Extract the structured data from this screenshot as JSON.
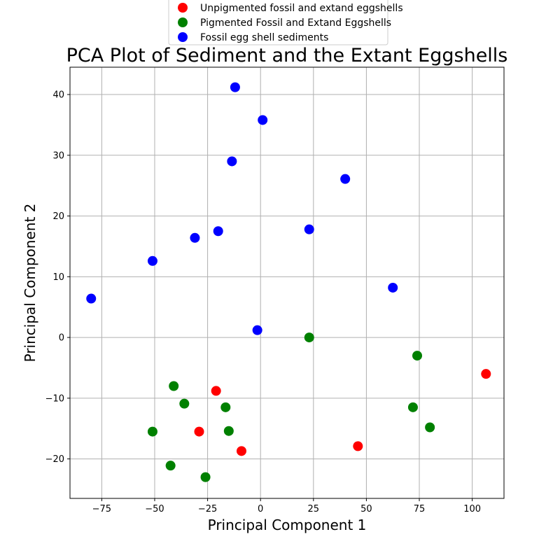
{
  "chart_data": {
    "type": "scatter",
    "title": "PCA Plot of Sediment and the Extant Eggshells",
    "xlabel": "Principal Component 1",
    "ylabel": "Principal Component 2",
    "xlim": [
      -90,
      115
    ],
    "ylim": [
      -26.5,
      44.5
    ],
    "xticks": [
      -75,
      -50,
      -25,
      0,
      25,
      50,
      75,
      100
    ],
    "yticks": [
      -20,
      -10,
      0,
      10,
      20,
      30,
      40
    ],
    "xtick_labels": [
      "−75",
      "−50",
      "−25",
      "0",
      "25",
      "50",
      "75",
      "100"
    ],
    "ytick_labels": [
      "−20",
      "−10",
      "0",
      "10",
      "20",
      "30",
      "40"
    ],
    "grid": true,
    "legend_placement": "upper-center",
    "series": [
      {
        "name": "Unpigmented fossil and extand eggshells",
        "color": "#ff0000",
        "points": [
          [
            -21,
            -8.8
          ],
          [
            -29,
            -15.5
          ],
          [
            -9,
            -18.7
          ],
          [
            46,
            -17.9
          ],
          [
            106.5,
            -6
          ]
        ]
      },
      {
        "name": "Pigmented Fossil and Extand Eggshells",
        "color": "#008000",
        "points": [
          [
            -41,
            -8
          ],
          [
            -36,
            -10.9
          ],
          [
            -16.5,
            -11.5
          ],
          [
            -15,
            -15.4
          ],
          [
            -51,
            -15.5
          ],
          [
            -42.5,
            -21.1
          ],
          [
            -26,
            -23
          ],
          [
            23,
            0
          ],
          [
            74,
            -3
          ],
          [
            72,
            -11.5
          ],
          [
            80,
            -14.8
          ]
        ]
      },
      {
        "name": "Fossil egg shell sediments",
        "color": "#0000ff",
        "points": [
          [
            -12,
            41.2
          ],
          [
            1,
            35.8
          ],
          [
            -13.5,
            29
          ],
          [
            40,
            26.1
          ],
          [
            23,
            17.8
          ],
          [
            -20,
            17.5
          ],
          [
            -31,
            16.4
          ],
          [
            -51,
            12.6
          ],
          [
            -80,
            6.4
          ],
          [
            62.5,
            8.2
          ],
          [
            -1.5,
            1.2
          ]
        ]
      }
    ]
  }
}
